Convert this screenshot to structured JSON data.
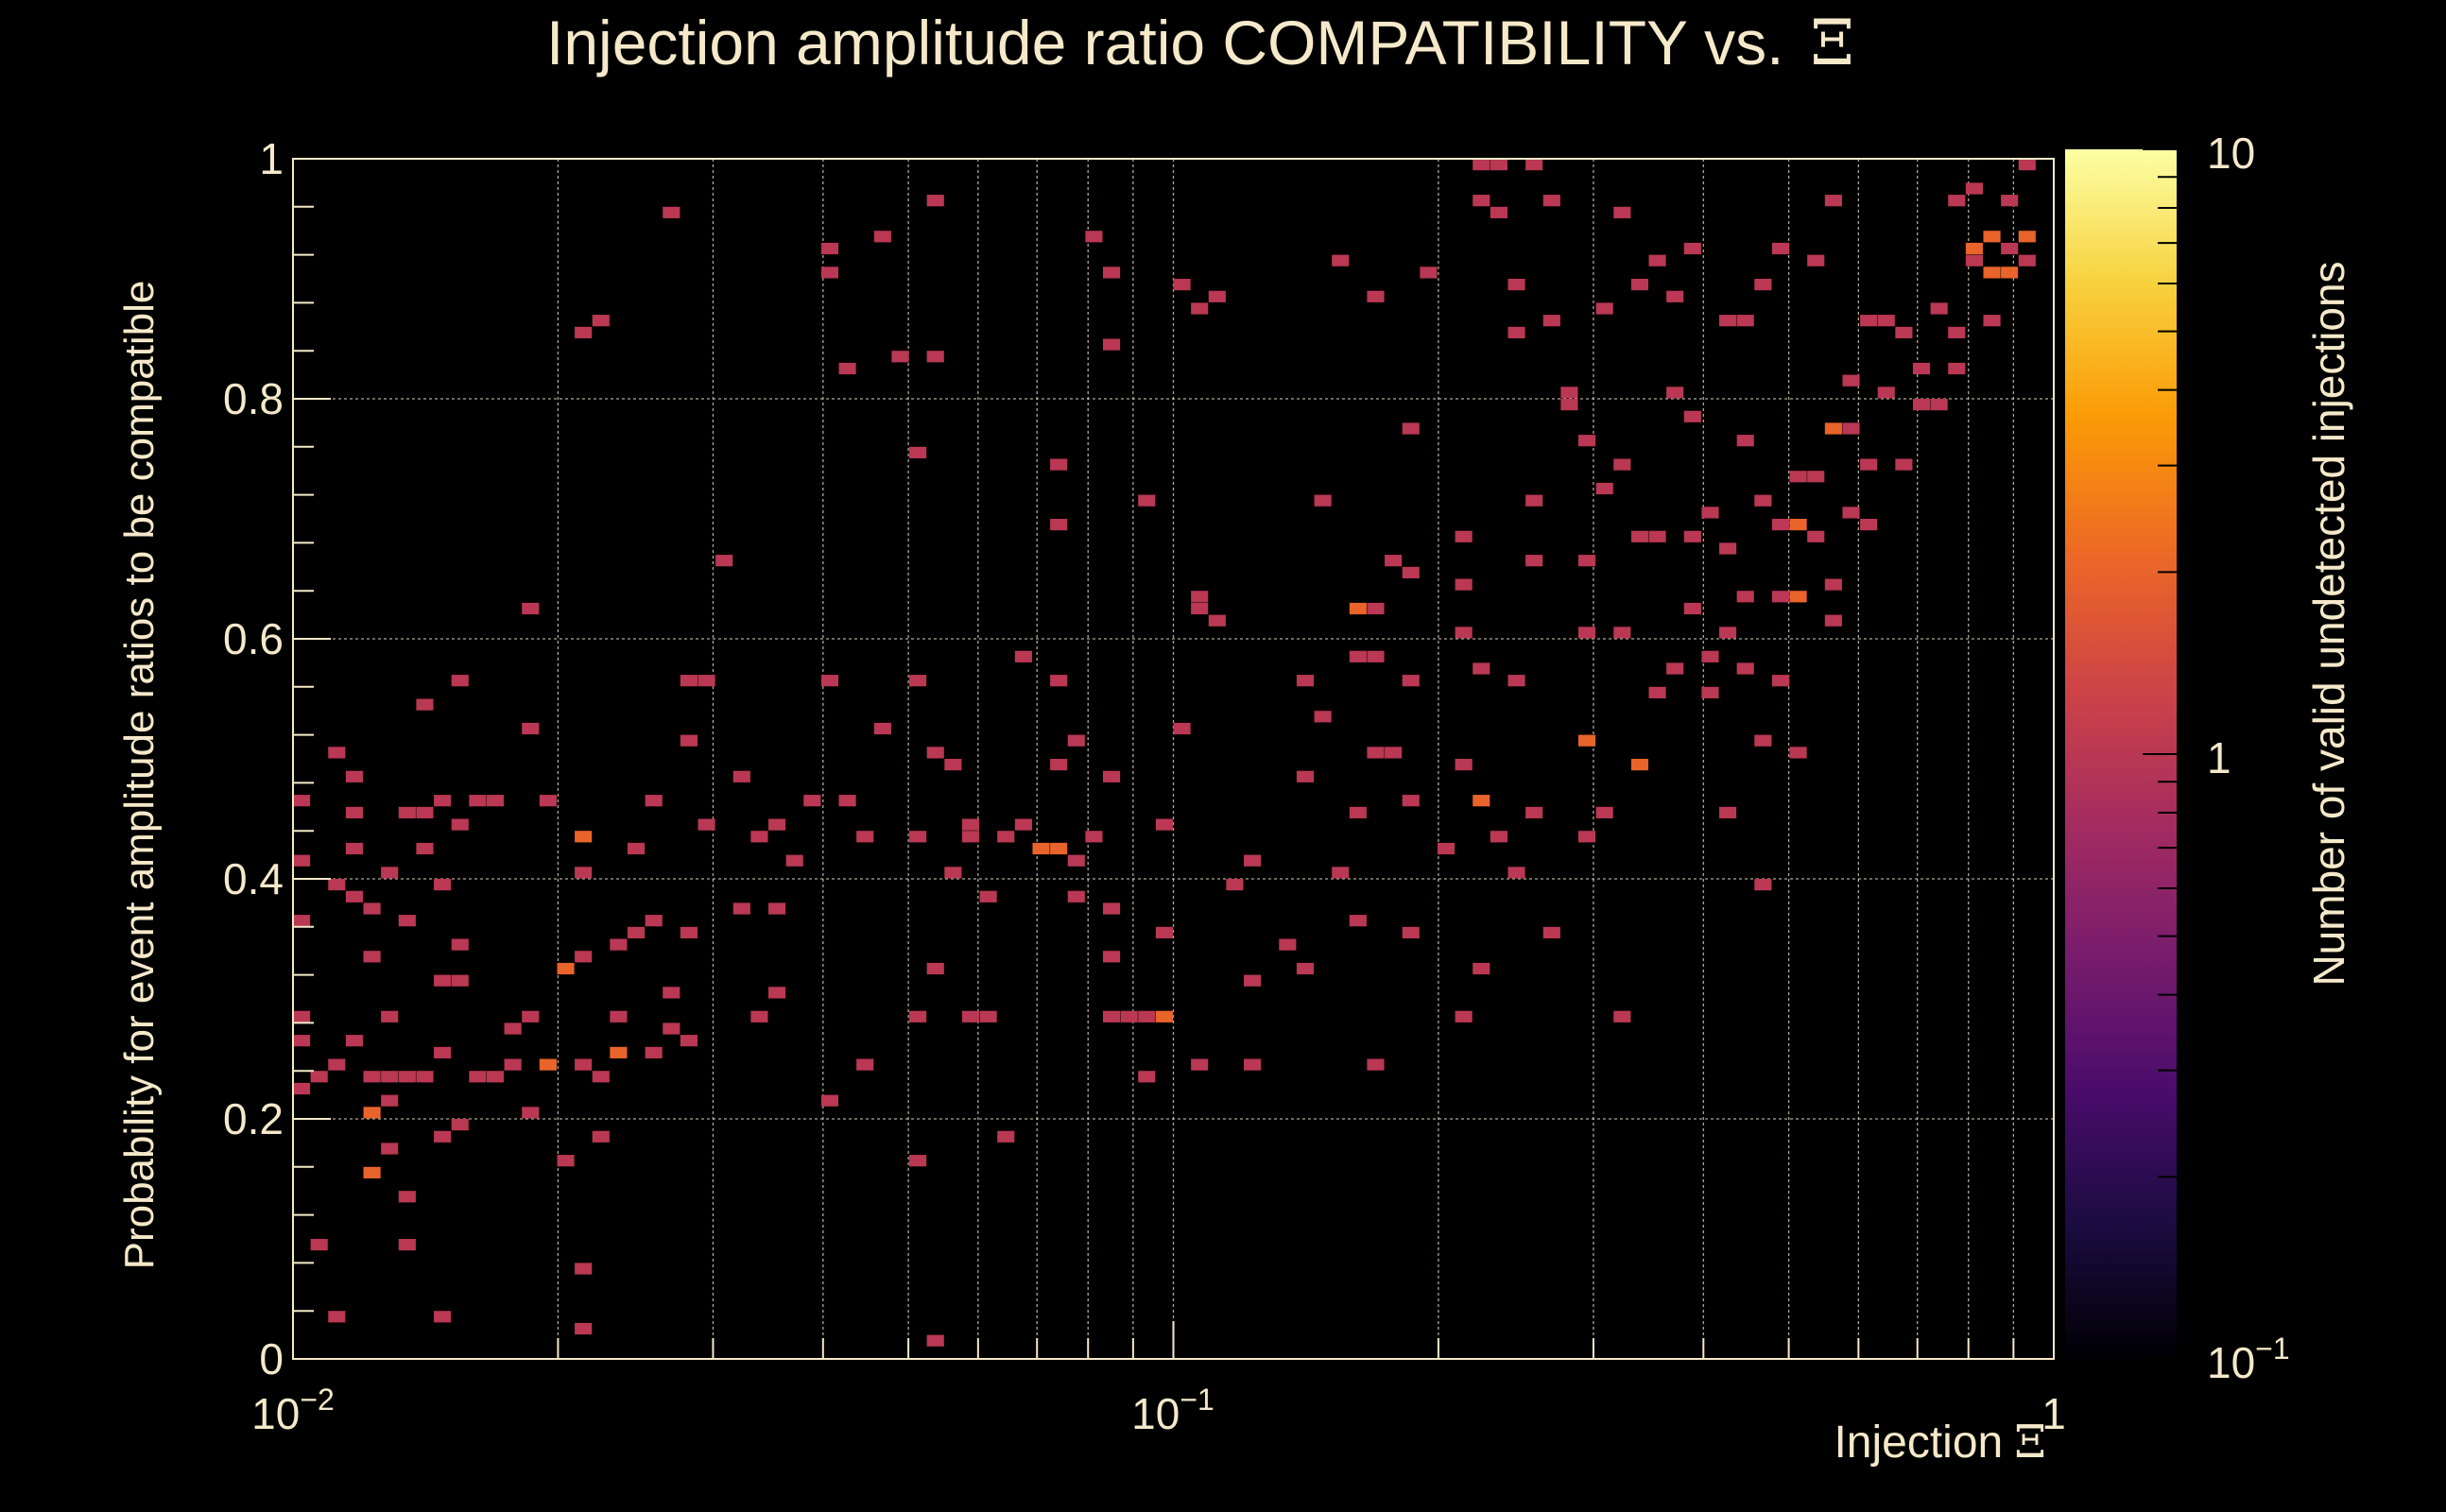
{
  "chart_data": {
    "type": "heatmap",
    "title": "Injection amplitude ratio COMPATIBILITY vs.",
    "title_symbol": "Ξ",
    "xlabel": "Injection",
    "xlabel_symbol": "Ξ",
    "ylabel": "Probability for event amplitude ratios to be compatible",
    "zlabel": "Number of valid undetected injections",
    "xscale": "log",
    "xlim": [
      0.01,
      1
    ],
    "ylim": [
      0,
      1
    ],
    "zscale": "log",
    "zlim": [
      0.1,
      10
    ],
    "grid": true,
    "x_tick_labels": [
      {
        "value": 0.01,
        "base": "10",
        "exp": "−2"
      },
      {
        "value": 0.1,
        "base": "10",
        "exp": "−1"
      },
      {
        "value": 1,
        "base": "1",
        "exp": ""
      }
    ],
    "y_tick_labels": [
      {
        "value": 0,
        "label": "0"
      },
      {
        "value": 0.2,
        "label": "0.2"
      },
      {
        "value": 0.4,
        "label": "0.4"
      },
      {
        "value": 0.6,
        "label": "0.6"
      },
      {
        "value": 0.8,
        "label": "0.8"
      },
      {
        "value": 1,
        "label": "1"
      }
    ],
    "z_tick_labels": [
      {
        "value": 10,
        "base": "10",
        "exp": ""
      },
      {
        "value": 1,
        "base": "1",
        "exp": ""
      },
      {
        "value": 0.1,
        "base": "10",
        "exp": "−1"
      }
    ],
    "colormap": [
      "#000004",
      "#1b0c41",
      "#4a0c6b",
      "#781c6d",
      "#a52c60",
      "#cf4446",
      "#ed6925",
      "#fb9b06",
      "#f7d13d",
      "#fcffa4"
    ],
    "bin_count_x": 100,
    "bin_count_y": 100,
    "cells_note": "[x, y, count] bin centers (x in data units, log scale)",
    "cells": [
      [
        0.0102,
        0.47,
        1
      ],
      [
        0.0102,
        0.41,
        1
      ],
      [
        0.0102,
        0.36,
        1
      ],
      [
        0.0102,
        0.28,
        1
      ],
      [
        0.0102,
        0.26,
        1
      ],
      [
        0.0102,
        0.22,
        1
      ],
      [
        0.0107,
        0.23,
        1
      ],
      [
        0.0107,
        0.09,
        1
      ],
      [
        0.0112,
        0.5,
        1
      ],
      [
        0.0112,
        0.39,
        1
      ],
      [
        0.0112,
        0.24,
        1
      ],
      [
        0.0112,
        0.03,
        1
      ],
      [
        0.0117,
        0.48,
        1
      ],
      [
        0.0117,
        0.45,
        1
      ],
      [
        0.0117,
        0.42,
        1
      ],
      [
        0.0117,
        0.38,
        1
      ],
      [
        0.0117,
        0.26,
        1
      ],
      [
        0.0122,
        0.37,
        1
      ],
      [
        0.0122,
        0.33,
        1
      ],
      [
        0.0122,
        0.23,
        1
      ],
      [
        0.0122,
        0.2,
        2
      ],
      [
        0.0122,
        0.15,
        2
      ],
      [
        0.0128,
        0.4,
        1
      ],
      [
        0.0128,
        0.28,
        1
      ],
      [
        0.0128,
        0.23,
        1
      ],
      [
        0.0128,
        0.21,
        1
      ],
      [
        0.0128,
        0.17,
        1
      ],
      [
        0.0134,
        0.45,
        1
      ],
      [
        0.0134,
        0.36,
        1
      ],
      [
        0.0134,
        0.23,
        1
      ],
      [
        0.0134,
        0.13,
        1
      ],
      [
        0.0134,
        0.09,
        1
      ],
      [
        0.014,
        0.54,
        1
      ],
      [
        0.014,
        0.45,
        1
      ],
      [
        0.014,
        0.42,
        1
      ],
      [
        0.014,
        0.23,
        1
      ],
      [
        0.0147,
        0.46,
        1
      ],
      [
        0.0147,
        0.39,
        1
      ],
      [
        0.0147,
        0.31,
        1
      ],
      [
        0.0147,
        0.25,
        1
      ],
      [
        0.0147,
        0.18,
        1
      ],
      [
        0.0147,
        0.03,
        1
      ],
      [
        0.0154,
        0.57,
        1
      ],
      [
        0.0154,
        0.44,
        1
      ],
      [
        0.0154,
        0.34,
        1
      ],
      [
        0.0154,
        0.31,
        1
      ],
      [
        0.0154,
        0.19,
        1
      ],
      [
        0.0161,
        0.47,
        1
      ],
      [
        0.0161,
        0.23,
        1
      ],
      [
        0.0168,
        0.46,
        1
      ],
      [
        0.0168,
        0.23,
        1
      ],
      [
        0.0176,
        0.27,
        1
      ],
      [
        0.0176,
        0.24,
        1
      ],
      [
        0.0184,
        0.62,
        1
      ],
      [
        0.0184,
        0.52,
        1
      ],
      [
        0.0184,
        0.28,
        1
      ],
      [
        0.0184,
        0.2,
        1
      ],
      [
        0.0193,
        0.47,
        1
      ],
      [
        0.0193,
        0.24,
        2
      ],
      [
        0.0202,
        0.32,
        2
      ],
      [
        0.0202,
        0.16,
        1
      ],
      [
        0.0211,
        0.85,
        1
      ],
      [
        0.0211,
        0.43,
        2
      ],
      [
        0.0211,
        0.4,
        1
      ],
      [
        0.0211,
        0.33,
        1
      ],
      [
        0.0211,
        0.24,
        1
      ],
      [
        0.0211,
        0.07,
        1
      ],
      [
        0.0211,
        0.02,
        1
      ],
      [
        0.0221,
        0.86,
        1
      ],
      [
        0.0221,
        0.23,
        1
      ],
      [
        0.0221,
        0.18,
        1
      ],
      [
        0.0231,
        0.34,
        1
      ],
      [
        0.0231,
        0.29,
        1
      ],
      [
        0.0231,
        0.25,
        2
      ],
      [
        0.0242,
        0.42,
        1
      ],
      [
        0.0242,
        0.35,
        1
      ],
      [
        0.0253,
        0.47,
        1
      ],
      [
        0.0253,
        0.36,
        1
      ],
      [
        0.0253,
        0.25,
        1
      ],
      [
        0.0265,
        0.95,
        1
      ],
      [
        0.0265,
        0.3,
        1
      ],
      [
        0.0265,
        0.27,
        1
      ],
      [
        0.0278,
        0.56,
        1
      ],
      [
        0.0278,
        0.51,
        1
      ],
      [
        0.0278,
        0.35,
        1
      ],
      [
        0.0278,
        0.26,
        1
      ],
      [
        0.0291,
        0.56,
        1
      ],
      [
        0.0291,
        0.44,
        1
      ],
      [
        0.0305,
        0.66,
        1
      ],
      [
        0.0319,
        0.48,
        1
      ],
      [
        0.0319,
        0.37,
        1
      ],
      [
        0.0334,
        0.43,
        1
      ],
      [
        0.0334,
        0.28,
        1
      ],
      [
        0.035,
        0.44,
        1
      ],
      [
        0.035,
        0.37,
        1
      ],
      [
        0.035,
        0.3,
        1
      ],
      [
        0.0367,
        0.41,
        1
      ],
      [
        0.0384,
        0.46,
        1
      ],
      [
        0.0402,
        0.92,
        1
      ],
      [
        0.0402,
        0.9,
        1
      ],
      [
        0.0402,
        0.56,
        1
      ],
      [
        0.0402,
        0.21,
        1
      ],
      [
        0.0421,
        0.82,
        1
      ],
      [
        0.0421,
        0.46,
        1
      ],
      [
        0.0441,
        0.43,
        1
      ],
      [
        0.0441,
        0.24,
        1
      ],
      [
        0.0462,
        0.93,
        1
      ],
      [
        0.0462,
        0.52,
        1
      ],
      [
        0.0484,
        0.83,
        1
      ],
      [
        0.0507,
        0.75,
        1
      ],
      [
        0.0507,
        0.56,
        1
      ],
      [
        0.0507,
        0.43,
        1
      ],
      [
        0.0507,
        0.28,
        1
      ],
      [
        0.0507,
        0.16,
        1
      ],
      [
        0.0531,
        0.96,
        1
      ],
      [
        0.0531,
        0.83,
        1
      ],
      [
        0.0531,
        0.5,
        1
      ],
      [
        0.0531,
        0.32,
        1
      ],
      [
        0.0531,
        0.01,
        1
      ],
      [
        0.0556,
        0.49,
        1
      ],
      [
        0.0556,
        0.4,
        1
      ],
      [
        0.0582,
        0.44,
        1
      ],
      [
        0.0582,
        0.43,
        1
      ],
      [
        0.0582,
        0.28,
        1
      ],
      [
        0.061,
        0.38,
        1
      ],
      [
        0.061,
        0.29,
        1
      ],
      [
        0.0639,
        0.43,
        1
      ],
      [
        0.0639,
        0.18,
        1
      ],
      [
        0.0669,
        0.59,
        1
      ],
      [
        0.0669,
        0.44,
        1
      ],
      [
        0.07,
        0.42,
        2
      ],
      [
        0.0733,
        0.74,
        1
      ],
      [
        0.0733,
        0.56,
        1
      ],
      [
        0.0733,
        0.49,
        1
      ],
      [
        0.0733,
        0.42,
        2
      ],
      [
        0.0733,
        0.69,
        1
      ],
      [
        0.0768,
        0.51,
        1
      ],
      [
        0.0768,
        0.41,
        1
      ],
      [
        0.0768,
        0.38,
        1
      ],
      [
        0.0804,
        0.94,
        1
      ],
      [
        0.0804,
        0.43,
        1
      ],
      [
        0.0842,
        0.9,
        1
      ],
      [
        0.0842,
        0.84,
        1
      ],
      [
        0.0842,
        0.48,
        1
      ],
      [
        0.0842,
        0.37,
        1
      ],
      [
        0.0842,
        0.33,
        1
      ],
      [
        0.0842,
        0.29,
        1
      ],
      [
        0.0882,
        0.28,
        1
      ],
      [
        0.0923,
        0.71,
        1
      ],
      [
        0.0923,
        0.28,
        1
      ],
      [
        0.0923,
        0.23,
        1
      ],
      [
        0.0967,
        0.28,
        2
      ],
      [
        0.0967,
        0.44,
        1
      ],
      [
        0.0967,
        0.35,
        1
      ],
      [
        0.1012,
        0.89,
        1
      ],
      [
        0.1012,
        0.52,
        1
      ],
      [
        0.106,
        0.87,
        1
      ],
      [
        0.106,
        0.63,
        1
      ],
      [
        0.106,
        0.62,
        1
      ],
      [
        0.106,
        0.24,
        1
      ],
      [
        0.111,
        0.88,
        1
      ],
      [
        0.111,
        0.61,
        1
      ],
      [
        0.1162,
        0.39,
        1
      ],
      [
        0.1217,
        0.41,
        1
      ],
      [
        0.1217,
        0.31,
        1
      ],
      [
        0.1217,
        0.24,
        1
      ],
      [
        0.1334,
        0.34,
        1
      ],
      [
        0.1396,
        0.57,
        1
      ],
      [
        0.1396,
        0.48,
        1
      ],
      [
        0.1396,
        0.32,
        1
      ],
      [
        0.1462,
        0.71,
        1
      ],
      [
        0.1462,
        0.53,
        1
      ],
      [
        0.1531,
        0.91,
        1
      ],
      [
        0.1531,
        0.4,
        1
      ],
      [
        0.1603,
        0.62,
        2
      ],
      [
        0.1603,
        0.59,
        1
      ],
      [
        0.1603,
        0.45,
        1
      ],
      [
        0.1603,
        0.36,
        1
      ],
      [
        0.1679,
        0.88,
        1
      ],
      [
        0.1679,
        0.62,
        1
      ],
      [
        0.1679,
        0.59,
        1
      ],
      [
        0.1679,
        0.5,
        1
      ],
      [
        0.1679,
        0.24,
        1
      ],
      [
        0.1758,
        0.66,
        1
      ],
      [
        0.1758,
        0.5,
        1
      ],
      [
        0.1841,
        0.77,
        1
      ],
      [
        0.1841,
        0.65,
        1
      ],
      [
        0.1841,
        0.56,
        1
      ],
      [
        0.1841,
        0.47,
        1
      ],
      [
        0.1841,
        0.35,
        1
      ],
      [
        0.1928,
        0.9,
        1
      ],
      [
        0.2019,
        0.42,
        1
      ],
      [
        0.2114,
        0.68,
        1
      ],
      [
        0.2114,
        0.64,
        1
      ],
      [
        0.2114,
        0.6,
        1
      ],
      [
        0.2114,
        0.49,
        1
      ],
      [
        0.2114,
        0.28,
        1
      ],
      [
        0.2214,
        0.99,
        1
      ],
      [
        0.2214,
        0.96,
        1
      ],
      [
        0.2214,
        0.58,
        1
      ],
      [
        0.2214,
        0.46,
        2
      ],
      [
        0.2214,
        0.32,
        1
      ],
      [
        0.2318,
        0.99,
        1
      ],
      [
        0.2318,
        0.95,
        1
      ],
      [
        0.2318,
        0.43,
        1
      ],
      [
        0.2427,
        0.89,
        1
      ],
      [
        0.2427,
        0.85,
        1
      ],
      [
        0.2427,
        0.56,
        1
      ],
      [
        0.2427,
        0.4,
        1
      ],
      [
        0.2542,
        0.99,
        1
      ],
      [
        0.2542,
        0.71,
        1
      ],
      [
        0.2542,
        0.66,
        1
      ],
      [
        0.2542,
        0.45,
        1
      ],
      [
        0.2662,
        0.96,
        1
      ],
      [
        0.2662,
        0.86,
        1
      ],
      [
        0.2662,
        0.35,
        1
      ],
      [
        0.2788,
        0.8,
        1
      ],
      [
        0.2788,
        0.79,
        1
      ],
      [
        0.2919,
        0.76,
        1
      ],
      [
        0.2919,
        0.66,
        1
      ],
      [
        0.2919,
        0.6,
        1
      ],
      [
        0.2919,
        0.51,
        2
      ],
      [
        0.2919,
        0.43,
        1
      ],
      [
        0.3057,
        0.87,
        1
      ],
      [
        0.3057,
        0.72,
        1
      ],
      [
        0.3057,
        0.45,
        1
      ],
      [
        0.3201,
        0.95,
        1
      ],
      [
        0.3201,
        0.74,
        1
      ],
      [
        0.3201,
        0.6,
        1
      ],
      [
        0.3201,
        0.28,
        1
      ],
      [
        0.3352,
        0.89,
        1
      ],
      [
        0.3352,
        0.68,
        1
      ],
      [
        0.3352,
        0.49,
        2
      ],
      [
        0.351,
        0.91,
        1
      ],
      [
        0.351,
        0.68,
        1
      ],
      [
        0.351,
        0.55,
        1
      ],
      [
        0.3676,
        0.88,
        1
      ],
      [
        0.3676,
        0.8,
        1
      ],
      [
        0.3676,
        0.58,
        1
      ],
      [
        0.3849,
        0.92,
        1
      ],
      [
        0.3849,
        0.78,
        1
      ],
      [
        0.3849,
        0.68,
        1
      ],
      [
        0.3849,
        0.62,
        1
      ],
      [
        0.4031,
        0.7,
        1
      ],
      [
        0.4031,
        0.59,
        1
      ],
      [
        0.4031,
        0.55,
        1
      ],
      [
        0.4221,
        0.86,
        1
      ],
      [
        0.4221,
        0.67,
        1
      ],
      [
        0.4221,
        0.6,
        1
      ],
      [
        0.4221,
        0.45,
        1
      ],
      [
        0.442,
        0.86,
        1
      ],
      [
        0.442,
        0.76,
        1
      ],
      [
        0.442,
        0.63,
        1
      ],
      [
        0.442,
        0.58,
        1
      ],
      [
        0.4629,
        0.89,
        1
      ],
      [
        0.4629,
        0.71,
        1
      ],
      [
        0.4629,
        0.51,
        1
      ],
      [
        0.4629,
        0.39,
        1
      ],
      [
        0.4847,
        0.92,
        1
      ],
      [
        0.4847,
        0.69,
        1
      ],
      [
        0.4847,
        0.63,
        1
      ],
      [
        0.4847,
        0.57,
        1
      ],
      [
        0.5076,
        0.73,
        1
      ],
      [
        0.5076,
        0.69,
        2
      ],
      [
        0.5076,
        0.63,
        2
      ],
      [
        0.5076,
        0.5,
        1
      ],
      [
        0.5315,
        0.91,
        1
      ],
      [
        0.5315,
        0.73,
        1
      ],
      [
        0.5315,
        0.68,
        1
      ],
      [
        0.5566,
        0.96,
        1
      ],
      [
        0.5566,
        0.77,
        2
      ],
      [
        0.5566,
        0.64,
        1
      ],
      [
        0.5566,
        0.61,
        1
      ],
      [
        0.5829,
        0.81,
        1
      ],
      [
        0.5829,
        0.77,
        1
      ],
      [
        0.5829,
        0.7,
        1
      ],
      [
        0.6104,
        0.86,
        1
      ],
      [
        0.6104,
        0.74,
        1
      ],
      [
        0.6104,
        0.69,
        1
      ],
      [
        0.6392,
        0.86,
        1
      ],
      [
        0.6392,
        0.8,
        1
      ],
      [
        0.6693,
        0.85,
        1
      ],
      [
        0.6693,
        0.74,
        1
      ],
      [
        0.7009,
        0.82,
        1
      ],
      [
        0.7009,
        0.79,
        1
      ],
      [
        0.734,
        0.87,
        1
      ],
      [
        0.734,
        0.79,
        1
      ],
      [
        0.7686,
        0.96,
        1
      ],
      [
        0.7686,
        0.85,
        1
      ],
      [
        0.7686,
        0.82,
        1
      ],
      [
        0.8049,
        0.91,
        1
      ],
      [
        0.8049,
        0.97,
        1
      ],
      [
        0.8049,
        0.92,
        2
      ],
      [
        0.8428,
        0.94,
        2
      ],
      [
        0.8428,
        0.9,
        2
      ],
      [
        0.8428,
        0.86,
        1
      ],
      [
        0.8826,
        0.96,
        1
      ],
      [
        0.8826,
        0.92,
        1
      ],
      [
        0.8826,
        0.9,
        2
      ],
      [
        0.9242,
        0.99,
        1
      ],
      [
        0.9242,
        0.93,
        2
      ],
      [
        0.9242,
        0.91,
        1
      ]
    ]
  }
}
